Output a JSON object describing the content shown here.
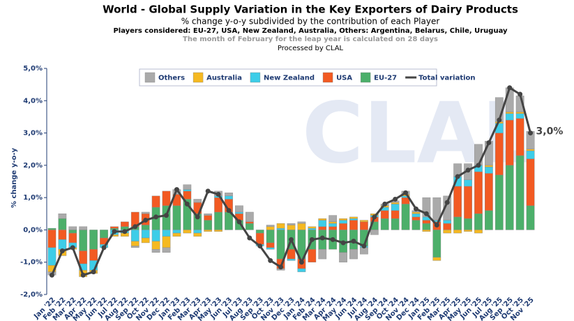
{
  "chart_data": {
    "type": "stacked_bar_line",
    "title": "World - Global Supply Variation in the Key Exporters of Dairy Products",
    "subtitle": "% change y-o-y subdivided by the contribution of each Player",
    "players_note": "Players considered: EU-27, USA, New Zealand, Australia, Others: Argentina, Belarus, Chile, Uruguay",
    "leap_note": "The month of February for the leap year is calculated on 28 days",
    "processed_by": "Processed by CLAL",
    "watermark": "CLAL",
    "y_label": "% change y-o-y",
    "categories": [
      "Jan '22",
      "Feb '22",
      "Mar '22",
      "Apr '22",
      "May '22",
      "Jun '22",
      "Jul '22",
      "Aug '22",
      "Sep '22",
      "Oct '22",
      "Nov '22",
      "Dec '22",
      "Jan '23",
      "Feb '23",
      "Mar '23",
      "Apr '23",
      "May '23",
      "Jun '23",
      "Jul '23",
      "Aug '23",
      "Sep '23",
      "Oct '23",
      "Nov '23",
      "Dec '23",
      "Jan '24",
      "Feb '24",
      "Mar '24",
      "Apr '24",
      "May '24",
      "Jun '24",
      "Jul '24",
      "Aug '24",
      "Sep '24",
      "Oct '24",
      "Nov '24",
      "Dec '24",
      "Jan '25",
      "Feb '25",
      "Mar '25",
      "Apr '25",
      "May '25",
      "Jun '25",
      "Jul '25",
      "Aug '25",
      "Sep '25",
      "Oct '25",
      "Nov '25"
    ],
    "series": [
      {
        "name": "Others",
        "color": "#aaaaaa",
        "values": [
          -0.1,
          0.15,
          0.1,
          0.1,
          0.0,
          0.0,
          0.0,
          0,
          -0.05,
          0.05,
          -0.1,
          -0.15,
          0.15,
          0.15,
          0.1,
          0.05,
          0.15,
          0.1,
          0.2,
          0.3,
          0.0,
          0.05,
          -0.05,
          0.05,
          0.05,
          0.0,
          -0.3,
          0.2,
          -0.3,
          -0.3,
          -0.2,
          -0.15,
          0.05,
          0.05,
          0.1,
          0.05,
          0.6,
          0.7,
          0.75,
          0.4,
          0.5,
          0.65,
          0.75,
          0.75,
          0.75,
          0.5,
          0.55
        ]
      },
      {
        "name": "Australia",
        "color": "#f5b921",
        "values": [
          -0.2,
          -0.2,
          -0.05,
          -0.2,
          -0.1,
          0,
          -0.05,
          -0.1,
          -0.15,
          -0.15,
          -0.25,
          -0.35,
          -0.1,
          -0.1,
          -0.1,
          -0.05,
          -0.05,
          0,
          0,
          0,
          0,
          0.1,
          0.15,
          0.15,
          0.2,
          0.05,
          0.05,
          0.05,
          0.05,
          0.05,
          0.05,
          0.05,
          0.05,
          0.05,
          0.05,
          0.05,
          -0.05,
          -0.1,
          -0.1,
          -0.1,
          -0.05,
          -0.1,
          0.05,
          0.05,
          0.05,
          0.05,
          0.05
        ]
      },
      {
        "name": "New Zealand",
        "color": "#3dcde8",
        "values": [
          -0.55,
          -0.3,
          -0.15,
          -0.2,
          -0.3,
          -0.1,
          -0.15,
          -0.1,
          -0.35,
          -0.25,
          -0.35,
          -0.2,
          -0.1,
          0.05,
          -0.1,
          0,
          0.05,
          0.1,
          0.05,
          0,
          -0.05,
          -0.05,
          0.05,
          -0.05,
          -0.1,
          0.05,
          0.2,
          0.1,
          0.1,
          0.05,
          -0.05,
          0.05,
          0.1,
          0.2,
          0.05,
          0.1,
          0.1,
          0.05,
          0.1,
          0.3,
          0.2,
          0.2,
          0.2,
          0.3,
          0.2,
          0.15,
          0.25
        ]
      },
      {
        "name": "USA",
        "color": "#f25a22",
        "values": [
          -0.55,
          -0.3,
          -0.3,
          -0.4,
          -0.35,
          -0.2,
          0.05,
          0.15,
          0.45,
          0.35,
          0.35,
          0.45,
          0.35,
          0.25,
          0.35,
          0.15,
          0.45,
          0.4,
          0.2,
          0.05,
          -0.35,
          -0.15,
          -0.3,
          -0.3,
          -0.3,
          -0.4,
          0.1,
          0.1,
          0.2,
          0.3,
          0.25,
          0.15,
          0.25,
          0.25,
          0.2,
          0.1,
          0.1,
          0.25,
          0.2,
          0.95,
          1.0,
          1.3,
          1.15,
          1.3,
          1.4,
          1.15,
          1.45
        ]
      },
      {
        "name": "EU-27",
        "color": "#4caf6a",
        "values": [
          0.05,
          0.35,
          -0.1,
          -0.65,
          -0.6,
          -0.25,
          0.05,
          0.1,
          0.1,
          0.15,
          0.7,
          0.75,
          0.75,
          0.95,
          0.5,
          0.3,
          0.55,
          0.55,
          0.3,
          0.2,
          -0.1,
          -0.4,
          -0.9,
          -0.6,
          -0.9,
          -0.6,
          -0.6,
          -0.6,
          -0.7,
          -0.6,
          -0.5,
          0.25,
          0.35,
          0.35,
          0.8,
          0.3,
          0.2,
          -0.85,
          0.0,
          0.4,
          0.35,
          0.5,
          0.6,
          1.7,
          2.0,
          2.3,
          0.75
        ]
      },
      {
        "name": "Total variation",
        "color": "#444444",
        "kind": "line",
        "values": [
          -1.4,
          -0.65,
          -0.55,
          -1.4,
          -1.3,
          -0.55,
          -0.05,
          -0.05,
          0.1,
          0.3,
          0.4,
          0.45,
          1.25,
          0.8,
          0.4,
          1.2,
          1.1,
          0.6,
          0.25,
          -0.25,
          -0.5,
          -0.95,
          -1.15,
          -0.3,
          -1.0,
          -0.3,
          -0.25,
          -0.3,
          -0.4,
          -0.35,
          -0.5,
          0.4,
          0.8,
          0.95,
          1.15,
          0.65,
          0.5,
          0.15,
          0.85,
          1.65,
          1.85,
          2.0,
          2.7,
          3.4,
          4.4,
          4.2,
          3.0
        ],
        "value_labels": [
          null,
          null,
          null,
          null,
          null,
          null,
          null,
          null,
          null,
          null,
          null,
          null,
          null,
          null,
          null,
          null,
          null,
          null,
          null,
          null,
          null,
          null,
          null,
          null,
          null,
          null,
          null,
          null,
          null,
          null,
          null,
          null,
          null,
          null,
          null,
          null,
          null,
          null,
          null,
          null,
          null,
          null,
          null,
          null,
          null,
          null,
          "3,0%"
        ]
      }
    ],
    "stack_order": [
      "EU-27",
      "USA",
      "New Zealand",
      "Australia",
      "Others"
    ],
    "ylim": [
      -2,
      5
    ],
    "yticks": [
      {
        "value": -2,
        "label": "-2,0%"
      },
      {
        "value": -1,
        "label": "-1,0%"
      },
      {
        "value": 0,
        "label": "0,0%"
      },
      {
        "value": 1,
        "label": "1,0%"
      },
      {
        "value": 2,
        "label": "2,0%"
      },
      {
        "value": 3,
        "label": "3,0%"
      },
      {
        "value": 4,
        "label": "4,0%"
      },
      {
        "value": 5,
        "label": "5,0%"
      }
    ],
    "grid": false,
    "legend": "top"
  }
}
